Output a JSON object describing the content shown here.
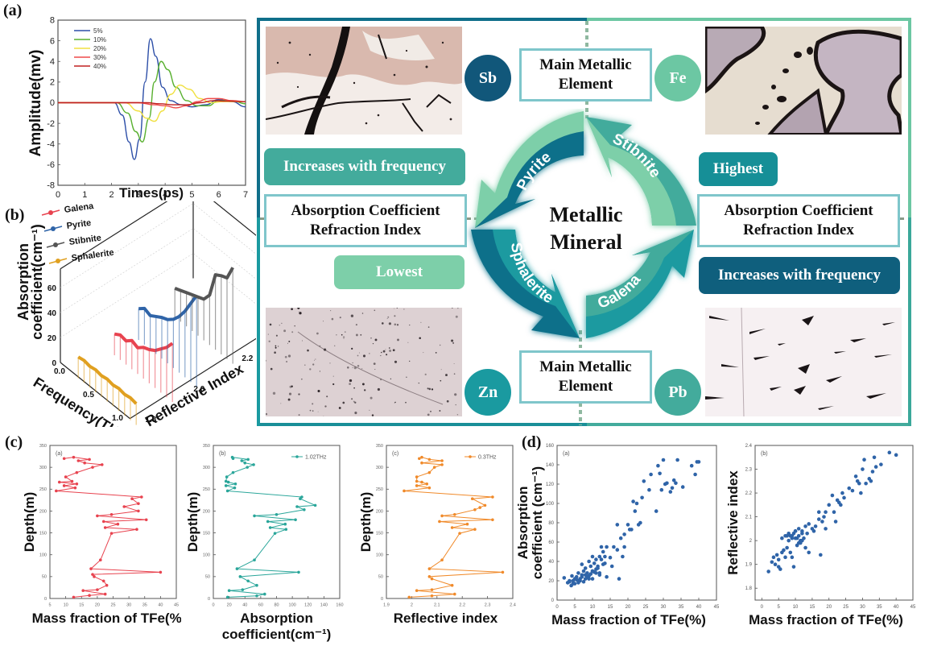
{
  "panel_labels": {
    "a": "(a)",
    "b": "(b)",
    "c": "(c)",
    "d": "(d)"
  },
  "colors": {
    "teal_dark": "#0f5f7d",
    "teal": "#1a9aa0",
    "teal_mid": "#43ab9c",
    "mint": "#6cc7a3",
    "box_border": "#7fc6cb"
  },
  "diagram": {
    "center_line1": "Metallic",
    "center_line2": "Mineral",
    "arrows": [
      {
        "label": "Pyrite",
        "element": "Fe"
      },
      {
        "label": "Stibnite",
        "element": "Sb"
      },
      {
        "label": "Galena",
        "element": "Pb"
      },
      {
        "label": "Sphalerite",
        "element": "Zn"
      }
    ],
    "elements": {
      "sb": "Sb",
      "fe": "Fe",
      "zn": "Zn",
      "pb": "Pb"
    },
    "main_element_box": {
      "line1": "Main Metallic",
      "line2": "Element"
    },
    "property_box": {
      "line1": "Absorption Coefficient",
      "line2": "Refraction Index"
    },
    "left_pill_top": "Increases with frequency",
    "left_pill_bottom": "Lowest",
    "right_pill_top": "Highest",
    "right_pill_bottom": "Increases with frequency"
  },
  "chart_data": [
    {
      "id": "a",
      "type": "line",
      "title": "",
      "xlabel": "Times(ps)",
      "ylabel": "Amplitude(mv)",
      "xlim": [
        0,
        7
      ],
      "ylim": [
        -8,
        8
      ],
      "xticks": [
        0,
        1,
        2,
        3,
        4,
        5,
        6,
        7
      ],
      "yticks": [
        -8,
        -6,
        -4,
        -2,
        0,
        2,
        4,
        6,
        8
      ],
      "legend_position": "top-left",
      "series": [
        {
          "name": "5%",
          "color": "#2d4fa8",
          "x": [
            0,
            2.1,
            2.4,
            2.65,
            2.85,
            3.05,
            3.25,
            3.45,
            3.65,
            3.9,
            4.2,
            4.6,
            5.0,
            5.5,
            6.0,
            6.5,
            7.0
          ],
          "y": [
            0,
            0,
            -1.2,
            -3.8,
            -5.5,
            -3.5,
            2.0,
            6.2,
            4.5,
            1.5,
            0.2,
            -0.2,
            -0.4,
            -0.2,
            0.3,
            0.1,
            -0.4
          ]
        },
        {
          "name": "10%",
          "color": "#58b02f",
          "x": [
            0,
            2.2,
            2.6,
            2.9,
            3.15,
            3.4,
            3.6,
            3.85,
            4.1,
            4.4,
            4.8,
            5.2,
            5.6,
            6.0,
            6.5,
            7.0
          ],
          "y": [
            0,
            0,
            -1.0,
            -2.8,
            -3.8,
            -1.5,
            2.0,
            4.0,
            3.2,
            1.5,
            0.2,
            -0.3,
            -0.3,
            0.2,
            0.2,
            -0.1
          ]
        },
        {
          "name": "20%",
          "color": "#f0e040",
          "x": [
            0,
            2.5,
            3.0,
            3.3,
            3.6,
            3.9,
            4.2,
            4.55,
            4.9,
            5.3,
            5.7,
            6.2,
            7.0
          ],
          "y": [
            0,
            0,
            -0.8,
            -1.5,
            -1.8,
            -0.8,
            0.8,
            1.7,
            1.3,
            0.4,
            0.0,
            0.1,
            0.1
          ]
        },
        {
          "name": "30%",
          "color": "#ef4a4a",
          "x": [
            0,
            3.0,
            3.6,
            4.0,
            4.4,
            4.8,
            5.2,
            5.6,
            6.0,
            6.5,
            7.0
          ],
          "y": [
            0,
            0,
            -0.2,
            -0.3,
            -0.5,
            -0.3,
            0.1,
            0.4,
            0.4,
            0.2,
            0.1
          ]
        },
        {
          "name": "40%",
          "color": "#c02020",
          "x": [
            0,
            3.3,
            3.8,
            4.3,
            4.8,
            5.3,
            5.8,
            6.3,
            7.0
          ],
          "y": [
            0,
            0,
            -0.1,
            -0.2,
            -0.2,
            0.0,
            0.2,
            0.15,
            0.1
          ]
        }
      ]
    },
    {
      "id": "b",
      "type": "line",
      "title": "",
      "xlabel": "Frequency(THz)",
      "ylabel": "Absorption coefficient(cm-1)",
      "zlabel": "Reflective Index",
      "xticks": [
        0.0,
        0.5,
        1.0
      ],
      "yticks": [
        0,
        20,
        40,
        60
      ],
      "zticks": [
        1.8,
        2.0,
        2.2
      ],
      "legend_position": "top-left",
      "series": [
        {
          "name": "Galena",
          "color": "#e8434f",
          "reflective_index": 1.95,
          "freq": [
            0.1,
            0.2,
            0.3,
            0.4,
            0.5,
            0.6,
            0.7,
            0.8,
            0.9,
            1.0,
            1.1
          ],
          "absorption": [
            2,
            5,
            4,
            8,
            6,
            10,
            12,
            15,
            20,
            25,
            32
          ]
        },
        {
          "name": "Pyrite",
          "color": "#2f64a8",
          "reflective_index": 2.05,
          "freq": [
            0.1,
            0.2,
            0.3,
            0.4,
            0.5,
            0.6,
            0.7,
            0.8,
            0.9,
            1.0,
            1.1
          ],
          "absorption": [
            10,
            14,
            12,
            15,
            18,
            20,
            24,
            30,
            38,
            48,
            58
          ]
        },
        {
          "name": "Stibnite",
          "color": "#555555",
          "reflective_index": 2.2,
          "freq": [
            0.1,
            0.2,
            0.3,
            0.4,
            0.5,
            0.6,
            0.7,
            0.8,
            0.9,
            1.0,
            1.1
          ],
          "absorption": [
            8,
            10,
            12,
            14,
            16,
            18,
            25,
            45,
            48,
            50,
            62
          ]
        },
        {
          "name": "Sphalerite",
          "color": "#e0a020",
          "reflective_index": 1.8,
          "freq": [
            0.1,
            0.2,
            0.3,
            0.4,
            0.5,
            0.6,
            0.7,
            0.8,
            0.9,
            1.0,
            1.1
          ],
          "absorption": [
            2,
            3,
            2,
            3,
            2,
            3,
            2,
            3,
            2,
            3,
            2
          ]
        }
      ]
    },
    {
      "id": "c-a",
      "type": "line",
      "inset_label": "(a)",
      "xlabel": "Mass fraction of TFe(%)",
      "ylabel": "Depth(m)",
      "xlim": [
        5,
        45
      ],
      "ylim": [
        0,
        350
      ],
      "xticks": [
        5,
        10,
        15,
        20,
        25,
        30,
        35,
        40,
        45
      ],
      "yticks": [
        0,
        50,
        100,
        150,
        200,
        250,
        300,
        350
      ],
      "color": "#e8434f",
      "x": [
        12.5,
        17.5,
        22.5,
        15.5,
        20,
        23,
        22,
        19,
        18.5,
        40,
        18,
        21,
        24.5,
        32.5,
        22.5,
        26.5,
        22,
        35.5,
        20,
        24.5,
        33,
        28.5,
        33,
        31,
        34,
        7,
        13,
        9.5,
        13.5,
        8,
        12,
        10,
        13.5,
        18.5,
        21.5,
        16,
        14,
        17.5,
        12.5,
        9.5
      ],
      "y": [
        3,
        7,
        10,
        18,
        20,
        30,
        40,
        50,
        55,
        60,
        68,
        88,
        149,
        158,
        162,
        170,
        176,
        180,
        189,
        192,
        200,
        210,
        217,
        228,
        232,
        246,
        253,
        258,
        262,
        266,
        268,
        278,
        288,
        300,
        306,
        310,
        315,
        318,
        323,
        320
      ]
    },
    {
      "id": "c-b",
      "type": "line",
      "inset_label": "(b)",
      "xlabel": "Absorption coefficient(cm-1)",
      "ylabel": "Depth(m)",
      "legend": "1.02THz",
      "legend_position": "top-right",
      "xlim": [
        0,
        160
      ],
      "ylim": [
        0,
        350
      ],
      "xticks": [
        0,
        20,
        40,
        60,
        80,
        100,
        120,
        140,
        160
      ],
      "yticks": [
        0,
        50,
        100,
        150,
        200,
        250,
        300,
        350
      ],
      "color": "#2aa69a",
      "x": [
        18,
        55,
        65,
        20,
        37,
        55,
        44,
        34,
        108,
        30,
        52,
        78,
        92,
        72,
        91,
        69,
        104,
        52,
        80,
        115,
        106,
        129,
        110,
        112,
        18,
        27,
        16,
        28,
        19,
        16,
        17,
        25,
        43,
        51,
        40,
        36,
        44,
        24,
        25
      ],
      "y": [
        3,
        6,
        10,
        18,
        20,
        30,
        40,
        50,
        60,
        68,
        88,
        149,
        158,
        162,
        170,
        176,
        180,
        189,
        192,
        203,
        210,
        213,
        228,
        232,
        246,
        253,
        258,
        262,
        266,
        268,
        278,
        288,
        300,
        306,
        310,
        315,
        318,
        323,
        320
      ]
    },
    {
      "id": "c-c",
      "type": "line",
      "inset_label": "(c)",
      "xlabel": "Reflective index",
      "ylabel": "Depth(m)",
      "legend": "0.3THz",
      "legend_position": "top-right",
      "xlim": [
        1.9,
        2.4
      ],
      "ylim": [
        0,
        350
      ],
      "xticks": [
        1.9,
        2.0,
        2.1,
        2.2,
        2.3,
        2.4
      ],
      "yticks": [
        0,
        50,
        100,
        150,
        200,
        250,
        300,
        350
      ],
      "color": "#f08a2a",
      "x": [
        1.99,
        2.08,
        2.17,
        2.02,
        2.08,
        2.16,
        2.08,
        2.07,
        2.36,
        2.07,
        2.12,
        2.19,
        2.25,
        2.16,
        2.22,
        2.11,
        2.32,
        2.12,
        2.17,
        2.25,
        2.27,
        2.29,
        2.24,
        2.32,
        1.97,
        2.07,
        2.02,
        2.06,
        2.04,
        2.02,
        2.02,
        2.07,
        2.09,
        2.12,
        2.04,
        2.12,
        2.07,
        2.04,
        2.03
      ],
      "y": [
        3,
        6,
        10,
        18,
        20,
        30,
        45,
        50,
        60,
        68,
        88,
        149,
        158,
        162,
        170,
        176,
        180,
        189,
        192,
        203,
        208,
        213,
        228,
        232,
        246,
        253,
        258,
        262,
        266,
        268,
        278,
        288,
        300,
        306,
        310,
        315,
        318,
        323,
        320
      ]
    },
    {
      "id": "d-a",
      "type": "scatter",
      "inset_label": "(a)",
      "xlabel": "Mass fraction of TFe(%)",
      "ylabel": "Absorption coefficient (cm-1)",
      "xlim": [
        0,
        45
      ],
      "ylim": [
        0,
        160
      ],
      "xticks": [
        0,
        5,
        10,
        15,
        20,
        25,
        30,
        35,
        40,
        45
      ],
      "yticks": [
        0,
        20,
        40,
        60,
        80,
        100,
        120,
        140,
        160
      ],
      "color": "#2f64a8",
      "x": [
        2,
        3,
        3.5,
        4,
        4.2,
        4.5,
        5,
        5,
        5.5,
        6,
        6,
        6.5,
        7,
        7,
        7.5,
        8,
        8,
        8.5,
        9,
        9,
        9.5,
        10,
        10,
        10,
        10.5,
        11,
        11,
        11.5,
        12,
        12,
        12.5,
        13,
        13,
        13.5,
        14,
        14,
        15,
        15.5,
        16,
        17,
        17,
        17.5,
        18,
        18.5,
        19,
        19,
        20,
        20.5,
        21,
        21.5,
        22,
        22.5,
        23,
        23.5,
        24,
        24.5,
        26,
        26.5,
        28,
        28.5,
        29,
        29.5,
        30,
        30.5,
        31,
        32,
        32.5,
        33,
        33.5,
        34,
        35.5,
        38,
        39,
        39.5,
        40,
        6,
        7,
        8,
        9,
        10,
        11,
        12,
        3.5,
        5.5,
        7.5,
        9.5,
        11.5,
        13.5,
        4.5,
        6.5,
        8.5,
        10.5,
        12.5
      ],
      "y": [
        23,
        18,
        20,
        15,
        25,
        20,
        17,
        22,
        24,
        18,
        28,
        22,
        26,
        37,
        30,
        22,
        33,
        28,
        25,
        40,
        35,
        30,
        22,
        45,
        38,
        28,
        42,
        35,
        26,
        45,
        55,
        37,
        50,
        45,
        55,
        24,
        44,
        35,
        55,
        78,
        52,
        22,
        64,
        45,
        55,
        68,
        78,
        73,
        73,
        102,
        92,
        100,
        78,
        80,
        106,
        123,
        114,
        130,
        92,
        139,
        131,
        114,
        145,
        120,
        121,
        112,
        116,
        124,
        121,
        145,
        117,
        139,
        130,
        143,
        143,
        20,
        24,
        26,
        22,
        30,
        32,
        28,
        19,
        21,
        19,
        27,
        33,
        38,
        17,
        20,
        24,
        29,
        42
      ]
    },
    {
      "id": "d-b",
      "type": "scatter",
      "inset_label": "(b)",
      "xlabel": "Mass fraction of TFe(%)",
      "ylabel": "Reflective index",
      "xlim": [
        -2,
        45
      ],
      "ylim": [
        1.75,
        2.4
      ],
      "xticks": [
        0,
        5,
        10,
        15,
        20,
        25,
        30,
        35,
        40,
        45
      ],
      "yticks": [
        1.8,
        1.9,
        2.0,
        2.1,
        2.2,
        2.3,
        2.4
      ],
      "color": "#2f64a8",
      "x": [
        2,
        3,
        3.5,
        4,
        4.5,
        5,
        5,
        5.5,
        6,
        6,
        6.5,
        7,
        7,
        7.5,
        8,
        8,
        8.5,
        9,
        9,
        9.5,
        10,
        10,
        10.5,
        11,
        11,
        11.5,
        12,
        12,
        12.5,
        13,
        13,
        13.5,
        14,
        14,
        15,
        15.5,
        16,
        17,
        17,
        17.5,
        18,
        18.5,
        19,
        19,
        20,
        21,
        21.5,
        22,
        22.5,
        23,
        23.5,
        24,
        24.5,
        26,
        27,
        28,
        28.5,
        29,
        29.5,
        30,
        30.5,
        31,
        32,
        32.5,
        33,
        33.5,
        34,
        35.5,
        38,
        40,
        8.5,
        9.5,
        10.5,
        11.5,
        7.5,
        9,
        10,
        11,
        12
      ],
      "y": [
        1.87,
        1.91,
        1.93,
        1.9,
        1.94,
        1.89,
        1.92,
        1.88,
        1.95,
        2.01,
        1.96,
        1.93,
        2.02,
        1.97,
        2.0,
        2.03,
        1.95,
        2.02,
        1.93,
        1.89,
        2.04,
        2.01,
        1.98,
        2.02,
        2.05,
        1.99,
        2.0,
        2.04,
        2.01,
        2.06,
        1.97,
        2.03,
        2.07,
        1.95,
        2.05,
        2.04,
        2.06,
        2.09,
        2.12,
        1.94,
        2.08,
        2.1,
        2.05,
        2.12,
        2.15,
        2.19,
        2.12,
        2.08,
        2.17,
        2.16,
        2.15,
        2.2,
        2.18,
        2.22,
        2.21,
        2.27,
        2.25,
        2.24,
        2.2,
        2.3,
        2.34,
        2.24,
        2.26,
        2.25,
        2.29,
        2.35,
        2.31,
        2.32,
        2.37,
        2.36,
        2.02,
        2.03,
        2.01,
        2.0,
        2.02,
        2.01,
        2.04,
        1.99,
        2.03
      ]
    }
  ]
}
